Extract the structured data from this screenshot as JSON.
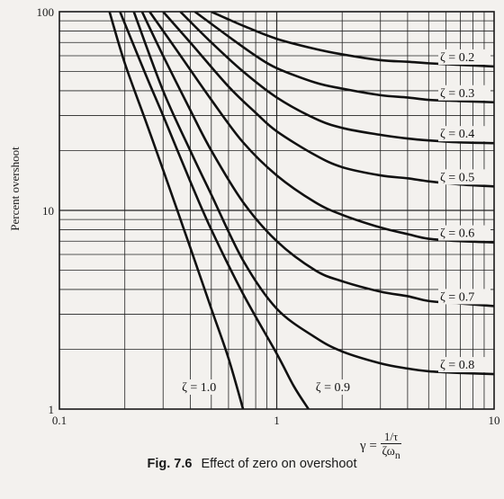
{
  "chart_data": {
    "type": "line",
    "title": "Effect of zero on overshoot",
    "figure_label": "Fig. 7.6",
    "xlabel": "γ = 1/τ / ζωn",
    "ylabel": "Percent overshoot",
    "x_scale": "log",
    "y_scale": "log",
    "xlim": [
      0.1,
      10
    ],
    "ylim": [
      1,
      100
    ],
    "x_ticks": [
      "0.1",
      "1",
      "10"
    ],
    "y_ticks": [
      "1",
      "10",
      "100"
    ],
    "grid": true,
    "series": [
      {
        "name": "ζ = 0.2",
        "x": [
          0.5,
          0.7,
          1.0,
          1.5,
          2.0,
          3.0,
          4.0,
          5.0,
          7.0,
          10.0
        ],
        "y": [
          100,
          85,
          73,
          65,
          61,
          57,
          56,
          55,
          54,
          53
        ]
      },
      {
        "name": "ζ = 0.3",
        "x": [
          0.42,
          0.6,
          0.8,
          1.0,
          1.5,
          2.0,
          3.0,
          4.0,
          5.0,
          7.0,
          10.0
        ],
        "y": [
          100,
          75,
          60,
          52,
          44,
          41,
          38,
          37,
          36,
          35.5,
          35
        ]
      },
      {
        "name": "ζ = 0.4",
        "x": [
          0.36,
          0.5,
          0.7,
          1.0,
          1.5,
          2.0,
          3.0,
          4.0,
          5.0,
          7.0,
          10.0
        ],
        "y": [
          100,
          70,
          50,
          37,
          29,
          26,
          24,
          23,
          22.5,
          22,
          21.8
        ]
      },
      {
        "name": "ζ = 0.5",
        "x": [
          0.3,
          0.4,
          0.6,
          0.8,
          1.0,
          1.5,
          2.0,
          3.0,
          4.0,
          5.0,
          7.0,
          10.0
        ],
        "y": [
          100,
          70,
          42,
          31,
          25,
          19,
          16.5,
          15,
          14.5,
          14,
          13.5,
          13.2
        ]
      },
      {
        "name": "ζ = 0.6",
        "x": [
          0.26,
          0.35,
          0.5,
          0.7,
          1.0,
          1.5,
          2.0,
          3.0,
          4.0,
          5.0,
          7.0,
          10.0
        ],
        "y": [
          100,
          63,
          36,
          22,
          15,
          11,
          9.5,
          8.2,
          7.6,
          7.2,
          7.0,
          6.9
        ]
      },
      {
        "name": "ζ = 0.7",
        "x": [
          0.24,
          0.3,
          0.4,
          0.5,
          0.7,
          1.0,
          1.5,
          2.0,
          3.0,
          4.0,
          5.0,
          7.0,
          10.0
        ],
        "y": [
          100,
          60,
          32,
          20,
          11,
          7,
          5,
          4.4,
          3.9,
          3.7,
          3.5,
          3.4,
          3.3
        ]
      },
      {
        "name": "ζ = 0.8",
        "x": [
          0.22,
          0.3,
          0.4,
          0.5,
          0.7,
          1.0,
          1.5,
          2.0,
          3.0,
          4.0,
          5.0,
          7.0,
          10.0
        ],
        "y": [
          100,
          40,
          20,
          12,
          5.6,
          3.2,
          2.3,
          1.95,
          1.7,
          1.6,
          1.55,
          1.52,
          1.5
        ]
      },
      {
        "name": "ζ = 0.9",
        "x": [
          0.19,
          0.25,
          0.3,
          0.4,
          0.5,
          0.7,
          1.0,
          1.2,
          1.4
        ],
        "y": [
          100,
          48,
          30,
          14,
          8,
          3.8,
          1.9,
          1.3,
          1.0
        ]
      },
      {
        "name": "ζ = 1.0",
        "x": [
          0.17,
          0.2,
          0.25,
          0.3,
          0.4,
          0.5,
          0.6,
          0.7
        ],
        "y": [
          100,
          55,
          28,
          16,
          6.5,
          3.2,
          1.8,
          1.0
        ]
      }
    ]
  }
}
